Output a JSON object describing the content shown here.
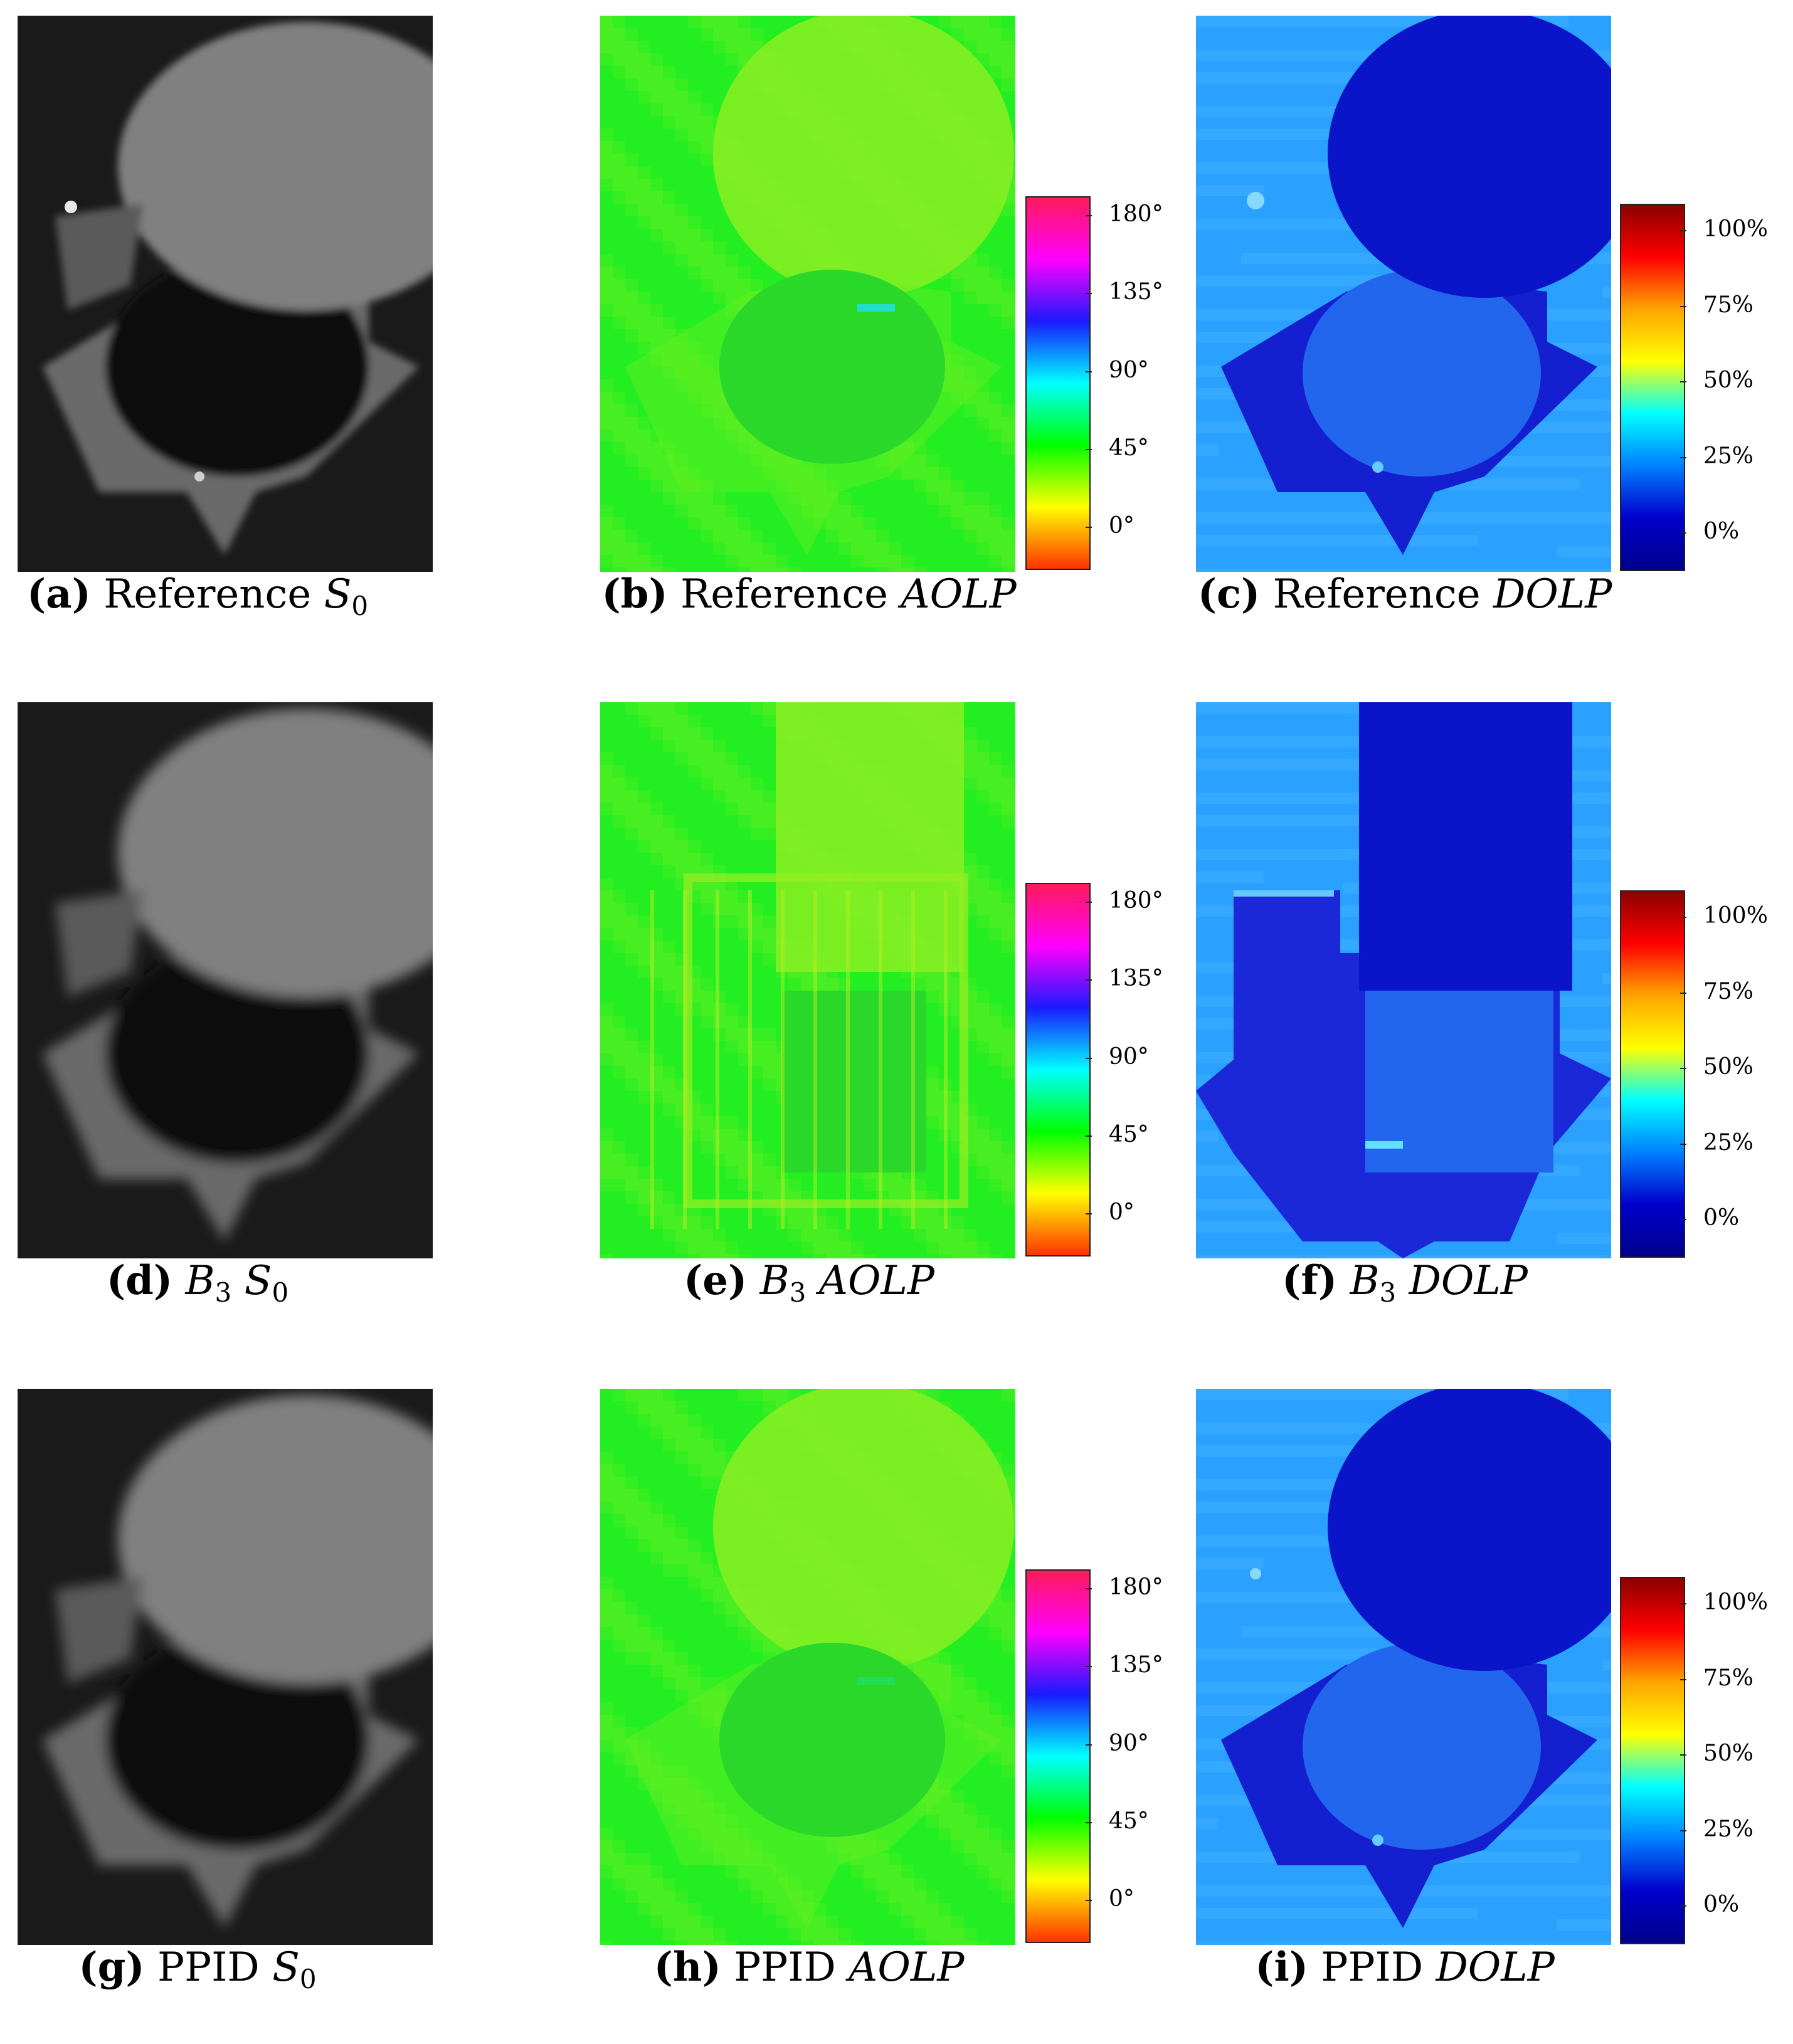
{
  "panels": [
    {
      "id": "a",
      "kind": "S0",
      "method": "Reference",
      "variant": "ref"
    },
    {
      "id": "b",
      "kind": "AOLP",
      "method": "Reference",
      "variant": "ref"
    },
    {
      "id": "c",
      "kind": "DOLP",
      "method": "Reference",
      "variant": "ref"
    },
    {
      "id": "d",
      "kind": "S0",
      "method": "B3",
      "variant": "b3"
    },
    {
      "id": "e",
      "kind": "AOLP",
      "method": "B3",
      "variant": "b3"
    },
    {
      "id": "f",
      "kind": "DOLP",
      "method": "B3",
      "variant": "b3"
    },
    {
      "id": "g",
      "kind": "S0",
      "method": "PPID",
      "variant": "ppid"
    },
    {
      "id": "h",
      "kind": "AOLP",
      "method": "PPID",
      "variant": "ppid"
    },
    {
      "id": "i",
      "kind": "DOLP",
      "method": "PPID",
      "variant": "ppid"
    }
  ],
  "captions": {
    "a": {
      "label": "(a)",
      "method": "Reference",
      "quantity": "S",
      "sub": "0"
    },
    "b": {
      "label": "(b)",
      "method": "Reference",
      "quantity": "AOLP"
    },
    "c": {
      "label": "(c)",
      "method": "Reference",
      "quantity": "DOLP"
    },
    "d": {
      "label": "(d)",
      "method": "B",
      "method_sub": "3",
      "quantity": "S",
      "sub": "0"
    },
    "e": {
      "label": "(e)",
      "method": "B",
      "method_sub": "3",
      "quantity": "AOLP"
    },
    "f": {
      "label": "(f)",
      "method": "B",
      "method_sub": "3",
      "quantity": "DOLP"
    },
    "g": {
      "label": "(g)",
      "method": "PPID",
      "quantity": "S",
      "sub": "0"
    },
    "h": {
      "label": "(h)",
      "method": "PPID",
      "quantity": "AOLP"
    },
    "i": {
      "label": "(i)",
      "method": "PPID",
      "quantity": "DOLP"
    }
  },
  "colorbars": {
    "aolp": {
      "ticks": [
        "180°",
        "135°",
        "90°",
        "45°",
        "0°"
      ],
      "colors": [
        "#ff1a5a",
        "#ff00ff",
        "#1a1aff",
        "#00ffff",
        "#00ff00",
        "#ffff00",
        "#ff3300"
      ]
    },
    "dolp": {
      "ticks": [
        "100%",
        "75%",
        "50%",
        "25%",
        "0%"
      ],
      "colors": [
        "#8b0000",
        "#ff0000",
        "#ffa500",
        "#ffff00",
        "#00ffff",
        "#0080ff",
        "#0000cc",
        "#00008b"
      ]
    }
  },
  "colors": {
    "s0_bg": "#1a1a1a",
    "s0_obj": "#808080",
    "s0_shadow": "#111111",
    "aolp_bg": "#22ee22",
    "aolp_obj": "#88ee22",
    "aolp_inner": "#2ad82a",
    "dolp_bg": "#2aa0ff",
    "dolp_obj": "#0a14c8",
    "dolp_mid": "#2266ee"
  }
}
